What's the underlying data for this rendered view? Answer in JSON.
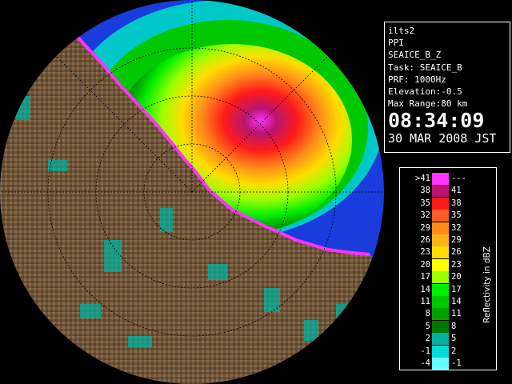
{
  "info_panel": {
    "site": "ilts2",
    "mode": "PPI",
    "product": "SEAICE_B_Z",
    "task": "Task: SEAICE_B",
    "prf": "PRF: 1000Hz",
    "elevation": "Elevation:-0.5",
    "max_range": "Max Range:80 km",
    "time": "08:34:09",
    "date": "30 MAR 2008 JST"
  },
  "legend": {
    "title": "Reflectivity in dBZ",
    "rows": [
      {
        "low": ">41",
        "high": "---",
        "color": "#ff33ff"
      },
      {
        "low": "38",
        "high": "41",
        "color": "#b8146f"
      },
      {
        "low": "35",
        "high": "38",
        "color": "#ff1a1a"
      },
      {
        "low": "32",
        "high": "35",
        "color": "#ff5a28"
      },
      {
        "low": "29",
        "high": "32",
        "color": "#ff8c1a"
      },
      {
        "low": "26",
        "high": "29",
        "color": "#ffb31a"
      },
      {
        "low": "23",
        "high": "26",
        "color": "#ffdd00"
      },
      {
        "low": "20",
        "high": "23",
        "color": "#ffff00"
      },
      {
        "low": "17",
        "high": "20",
        "color": "#9bff00"
      },
      {
        "low": "14",
        "high": "17",
        "color": "#00ee00"
      },
      {
        "low": "11",
        "high": "14",
        "color": "#00c800"
      },
      {
        "low": "8",
        "high": "11",
        "color": "#00a000"
      },
      {
        "low": "5",
        "high": "8",
        "color": "#007800"
      },
      {
        "low": "2",
        "high": "5",
        "color": "#00b0a0"
      },
      {
        "low": "-1",
        "high": "2",
        "color": "#00dcdc"
      },
      {
        "low": "-4",
        "high": "-1",
        "color": "#66ffff"
      }
    ]
  }
}
